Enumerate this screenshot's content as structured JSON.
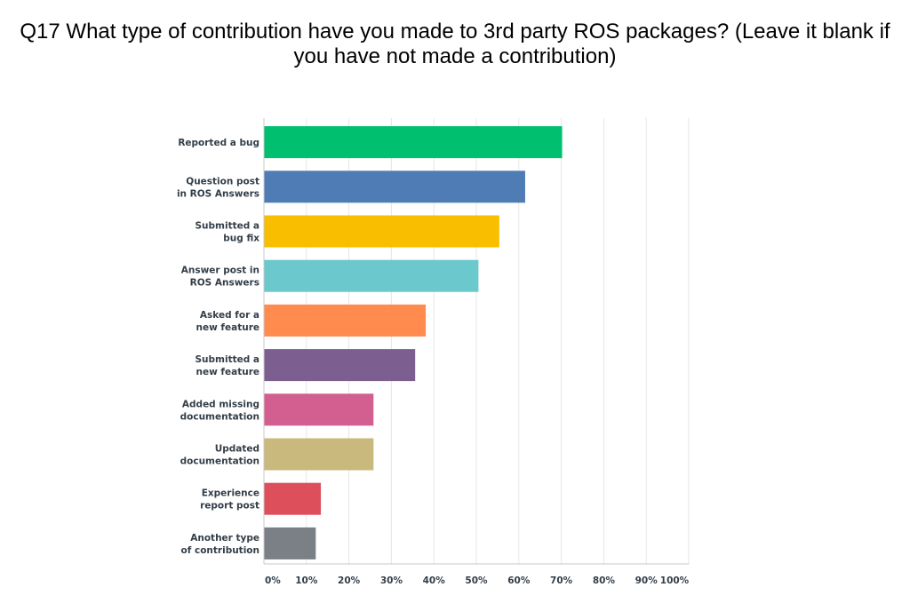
{
  "title_lines": [
    "Q17 What type of contribution have you made to 3rd party ROS packages? (Leave it blank if",
    "you have not made a contribution)"
  ],
  "chart_data": {
    "type": "bar",
    "orientation": "horizontal",
    "categories": [
      [
        "Reported a bug"
      ],
      [
        "Question post",
        "in ROS Answers"
      ],
      [
        "Submitted a",
        "bug fix"
      ],
      [
        "Answer post in",
        "ROS Answers"
      ],
      [
        "Asked for a",
        "new feature"
      ],
      [
        "Submitted a",
        "new feature"
      ],
      [
        "Added missing",
        "documentation"
      ],
      [
        "Updated",
        "documentation"
      ],
      [
        "Experience",
        "report post"
      ],
      [
        "Another type",
        "of contribution"
      ]
    ],
    "values": [
      70.2,
      61.5,
      55.4,
      50.5,
      38.1,
      35.6,
      25.8,
      25.8,
      13.4,
      12.2
    ],
    "colors": [
      "#00bf6f",
      "#507cb6",
      "#f9be00",
      "#6bc8cd",
      "#ff8b4f",
      "#7d5e90",
      "#d25f90",
      "#c9b97d",
      "#dd4f5b",
      "#7b8087"
    ],
    "x_ticks": [
      "0%",
      "10%",
      "20%",
      "30%",
      "40%",
      "50%",
      "60%",
      "70%",
      "80%",
      "90%",
      "100%"
    ],
    "xlim": [
      0,
      100
    ],
    "grid": true
  }
}
